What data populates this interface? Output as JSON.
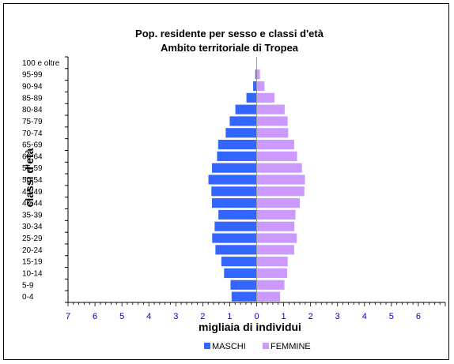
{
  "chart_data": {
    "type": "bar",
    "orientation": "horizontal",
    "subtype": "population-pyramid",
    "title": "Pop. residente per sesso e classi d'età",
    "subtitle": "Ambito territoriale di Tropea",
    "xlabel": "migliaia di individui",
    "ylabel": "classi d'età",
    "xlim": [
      -7,
      7
    ],
    "x_tick_labels": [
      "7",
      "6",
      "5",
      "4",
      "3",
      "2",
      "1",
      "0",
      "1",
      "2",
      "3",
      "4",
      "5",
      "6"
    ],
    "x_tick_values": [
      -7,
      -6,
      -5,
      -4,
      -3,
      -2,
      -1,
      0,
      1,
      2,
      3,
      4,
      5,
      6
    ],
    "categories": [
      "0-4",
      "5-9",
      "10-14",
      "15-19",
      "20-24",
      "25-29",
      "30-34",
      "35-39",
      "40-44",
      "45-49",
      "50-54",
      "55-59",
      "60-64",
      "65-69",
      "70-74",
      "75-79",
      "80-84",
      "85-89",
      "90-94",
      "95-99",
      "100 e oltre"
    ],
    "series": [
      {
        "name": "MASCHI",
        "color": "#3366ff",
        "values": [
          -0.93,
          -0.97,
          -1.21,
          -1.31,
          -1.53,
          -1.65,
          -1.56,
          -1.42,
          -1.66,
          -1.68,
          -1.79,
          -1.66,
          -1.47,
          -1.43,
          -1.15,
          -1.0,
          -0.79,
          -0.38,
          -0.13,
          -0.05,
          0.0
        ]
      },
      {
        "name": "FEMMINE",
        "color": "#cc99ff",
        "values": [
          0.87,
          1.03,
          1.13,
          1.15,
          1.39,
          1.49,
          1.4,
          1.44,
          1.6,
          1.77,
          1.79,
          1.68,
          1.5,
          1.39,
          1.17,
          1.15,
          1.04,
          0.66,
          0.29,
          0.12,
          0.0
        ]
      }
    ],
    "legend_position": "bottom",
    "grid": false
  }
}
